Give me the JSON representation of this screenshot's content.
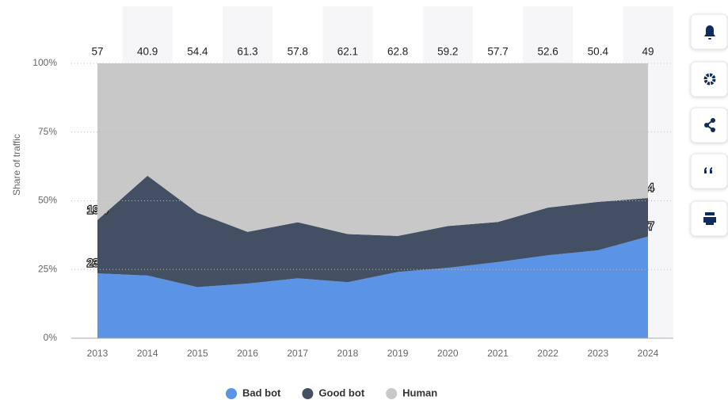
{
  "chart_data": {
    "type": "stacked_area",
    "y_label": "Share of traffic",
    "categories": [
      "2013",
      "2014",
      "2015",
      "2016",
      "2017",
      "2018",
      "2019",
      "2020",
      "2021",
      "2022",
      "2023",
      "2024"
    ],
    "series": [
      {
        "name": "Bad bot",
        "color": "#5b93e6",
        "values": [
          23.6,
          22.8,
          18.6,
          19.9,
          21.8,
          20.4,
          24.1,
          25.6,
          27.7,
          30.2,
          32,
          37
        ]
      },
      {
        "name": "Good bot",
        "color": "#434f63",
        "values": [
          19.4,
          36.3,
          27,
          18.8,
          20.4,
          17.5,
          13.1,
          15.2,
          14.6,
          17.3,
          17.6,
          14
        ]
      },
      {
        "name": "Human",
        "color": "#c8c8c8",
        "values": [
          57,
          40.9,
          54.4,
          61.3,
          57.8,
          62.1,
          62.8,
          59.2,
          57.7,
          52.6,
          50.4,
          49
        ]
      }
    ],
    "ylim": [
      0,
      100
    ],
    "yticks": [
      {
        "value": 0,
        "label": "0%"
      },
      {
        "value": 25,
        "label": "25%"
      },
      {
        "value": 50,
        "label": "50%"
      },
      {
        "value": 75,
        "label": "75%"
      },
      {
        "value": 100,
        "label": "100%"
      }
    ],
    "grid": true,
    "legend": "bottom"
  }
}
